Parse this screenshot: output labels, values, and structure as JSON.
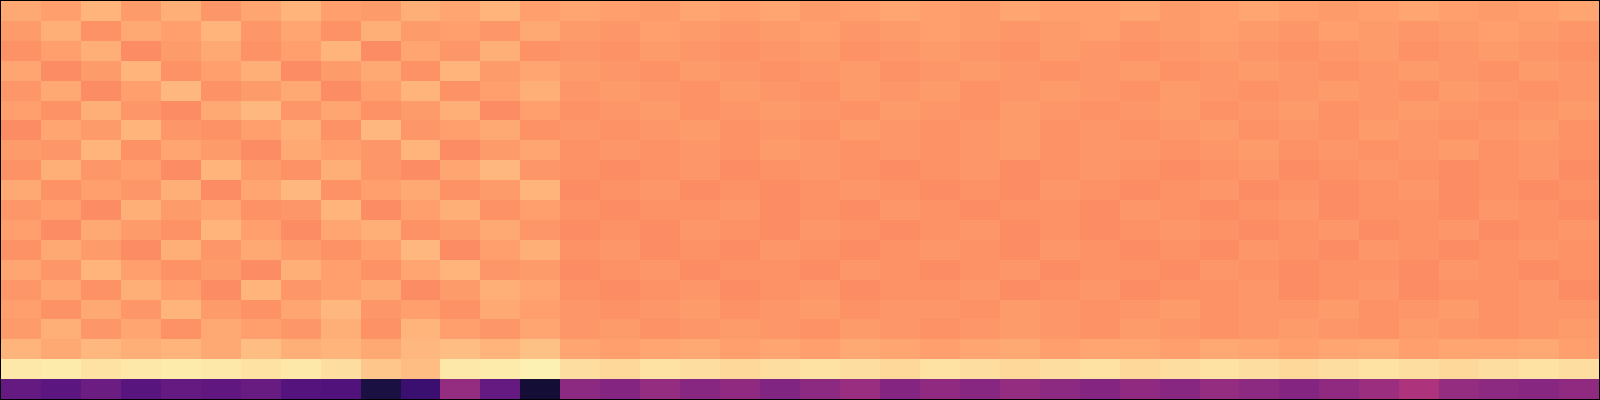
{
  "chart_data": {
    "type": "heatmap",
    "color": "magma",
    "color_range": [
      0,
      1
    ],
    "tick_labels": false,
    "values": [
      [
        0.82,
        0.8,
        0.84,
        0.79,
        0.83,
        0.78,
        0.81,
        0.84,
        0.8,
        0.79,
        0.83,
        0.81,
        0.84,
        0.8,
        0.81,
        0.8,
        0.79,
        0.81,
        0.8,
        0.81,
        0.79,
        0.8,
        0.81,
        0.8,
        0.79,
        0.81,
        0.8,
        0.8,
        0.81,
        0.79,
        0.8,
        0.81,
        0.8,
        0.79,
        0.8,
        0.81,
        0.8,
        0.79,
        0.8,
        0.81
      ],
      [
        0.79,
        0.83,
        0.77,
        0.82,
        0.8,
        0.84,
        0.78,
        0.81,
        0.77,
        0.83,
        0.79,
        0.8,
        0.78,
        0.82,
        0.79,
        0.78,
        0.8,
        0.79,
        0.78,
        0.79,
        0.8,
        0.78,
        0.79,
        0.8,
        0.79,
        0.78,
        0.79,
        0.8,
        0.78,
        0.79,
        0.8,
        0.79,
        0.78,
        0.8,
        0.79,
        0.78,
        0.79,
        0.8,
        0.79,
        0.78
      ],
      [
        0.77,
        0.8,
        0.83,
        0.76,
        0.79,
        0.82,
        0.77,
        0.8,
        0.84,
        0.76,
        0.81,
        0.78,
        0.83,
        0.77,
        0.78,
        0.77,
        0.79,
        0.78,
        0.77,
        0.78,
        0.79,
        0.77,
        0.78,
        0.79,
        0.78,
        0.77,
        0.79,
        0.78,
        0.77,
        0.78,
        0.79,
        0.78,
        0.77,
        0.78,
        0.79,
        0.77,
        0.78,
        0.79,
        0.78,
        0.77
      ],
      [
        0.81,
        0.76,
        0.79,
        0.84,
        0.77,
        0.8,
        0.83,
        0.76,
        0.79,
        0.82,
        0.77,
        0.84,
        0.79,
        0.81,
        0.79,
        0.78,
        0.77,
        0.79,
        0.78,
        0.77,
        0.78,
        0.79,
        0.77,
        0.78,
        0.79,
        0.78,
        0.77,
        0.78,
        0.79,
        0.77,
        0.78,
        0.79,
        0.78,
        0.77,
        0.78,
        0.79,
        0.78,
        0.77,
        0.79,
        0.78
      ],
      [
        0.78,
        0.82,
        0.76,
        0.8,
        0.85,
        0.77,
        0.79,
        0.82,
        0.76,
        0.8,
        0.84,
        0.77,
        0.8,
        0.83,
        0.78,
        0.79,
        0.78,
        0.77,
        0.79,
        0.78,
        0.77,
        0.79,
        0.78,
        0.79,
        0.77,
        0.78,
        0.79,
        0.78,
        0.77,
        0.79,
        0.78,
        0.77,
        0.78,
        0.79,
        0.78,
        0.77,
        0.79,
        0.78,
        0.77,
        0.78
      ],
      [
        0.8,
        0.77,
        0.83,
        0.78,
        0.76,
        0.82,
        0.85,
        0.78,
        0.81,
        0.77,
        0.79,
        0.83,
        0.76,
        0.8,
        0.77,
        0.78,
        0.79,
        0.77,
        0.78,
        0.79,
        0.78,
        0.77,
        0.79,
        0.78,
        0.77,
        0.79,
        0.78,
        0.77,
        0.78,
        0.79,
        0.77,
        0.78,
        0.79,
        0.77,
        0.78,
        0.79,
        0.78,
        0.77,
        0.78,
        0.79
      ],
      [
        0.76,
        0.81,
        0.79,
        0.84,
        0.78,
        0.77,
        0.8,
        0.83,
        0.77,
        0.85,
        0.78,
        0.8,
        0.82,
        0.77,
        0.78,
        0.77,
        0.78,
        0.79,
        0.77,
        0.78,
        0.77,
        0.79,
        0.78,
        0.77,
        0.78,
        0.79,
        0.77,
        0.78,
        0.77,
        0.78,
        0.79,
        0.77,
        0.78,
        0.77,
        0.79,
        0.78,
        0.77,
        0.78,
        0.79,
        0.77
      ],
      [
        0.79,
        0.78,
        0.84,
        0.77,
        0.81,
        0.79,
        0.76,
        0.82,
        0.8,
        0.78,
        0.84,
        0.76,
        0.79,
        0.81,
        0.77,
        0.78,
        0.77,
        0.78,
        0.77,
        0.79,
        0.78,
        0.77,
        0.78,
        0.77,
        0.78,
        0.79,
        0.77,
        0.78,
        0.78,
        0.77,
        0.78,
        0.79,
        0.77,
        0.78,
        0.77,
        0.78,
        0.79,
        0.77,
        0.78,
        0.77
      ],
      [
        0.77,
        0.83,
        0.78,
        0.8,
        0.76,
        0.84,
        0.79,
        0.77,
        0.83,
        0.78,
        0.76,
        0.81,
        0.85,
        0.78,
        0.77,
        0.76,
        0.77,
        0.78,
        0.76,
        0.77,
        0.78,
        0.77,
        0.76,
        0.77,
        0.78,
        0.76,
        0.77,
        0.78,
        0.77,
        0.76,
        0.77,
        0.78,
        0.76,
        0.77,
        0.78,
        0.77,
        0.76,
        0.77,
        0.78,
        0.76
      ],
      [
        0.82,
        0.77,
        0.8,
        0.78,
        0.83,
        0.76,
        0.81,
        0.85,
        0.77,
        0.8,
        0.82,
        0.77,
        0.79,
        0.84,
        0.76,
        0.77,
        0.78,
        0.76,
        0.77,
        0.76,
        0.77,
        0.78,
        0.77,
        0.76,
        0.77,
        0.76,
        0.78,
        0.77,
        0.76,
        0.77,
        0.78,
        0.76,
        0.77,
        0.76,
        0.77,
        0.78,
        0.76,
        0.77,
        0.76,
        0.77
      ],
      [
        0.78,
        0.8,
        0.76,
        0.83,
        0.79,
        0.81,
        0.77,
        0.78,
        0.84,
        0.76,
        0.8,
        0.83,
        0.77,
        0.8,
        0.77,
        0.76,
        0.77,
        0.77,
        0.78,
        0.76,
        0.77,
        0.76,
        0.78,
        0.77,
        0.76,
        0.77,
        0.77,
        0.76,
        0.78,
        0.77,
        0.76,
        0.77,
        0.78,
        0.76,
        0.77,
        0.77,
        0.76,
        0.78,
        0.77,
        0.76
      ],
      [
        0.8,
        0.76,
        0.82,
        0.79,
        0.77,
        0.84,
        0.8,
        0.76,
        0.81,
        0.83,
        0.77,
        0.79,
        0.82,
        0.78,
        0.76,
        0.77,
        0.76,
        0.78,
        0.77,
        0.76,
        0.78,
        0.77,
        0.76,
        0.77,
        0.78,
        0.76,
        0.77,
        0.76,
        0.77,
        0.78,
        0.77,
        0.76,
        0.77,
        0.78,
        0.76,
        0.77,
        0.78,
        0.76,
        0.77,
        0.78
      ],
      [
        0.77,
        0.82,
        0.79,
        0.76,
        0.83,
        0.78,
        0.82,
        0.79,
        0.77,
        0.8,
        0.85,
        0.76,
        0.8,
        0.83,
        0.77,
        0.78,
        0.76,
        0.77,
        0.76,
        0.78,
        0.77,
        0.76,
        0.77,
        0.78,
        0.77,
        0.76,
        0.78,
        0.77,
        0.76,
        0.77,
        0.76,
        0.78,
        0.77,
        0.76,
        0.78,
        0.77,
        0.76,
        0.77,
        0.78,
        0.77
      ],
      [
        0.81,
        0.78,
        0.84,
        0.8,
        0.77,
        0.79,
        0.76,
        0.83,
        0.8,
        0.77,
        0.81,
        0.84,
        0.78,
        0.79,
        0.76,
        0.77,
        0.78,
        0.76,
        0.77,
        0.77,
        0.76,
        0.78,
        0.77,
        0.76,
        0.77,
        0.78,
        0.76,
        0.77,
        0.77,
        0.76,
        0.78,
        0.77,
        0.76,
        0.77,
        0.77,
        0.76,
        0.78,
        0.77,
        0.76,
        0.77
      ],
      [
        0.78,
        0.81,
        0.77,
        0.83,
        0.8,
        0.76,
        0.84,
        0.78,
        0.8,
        0.82,
        0.76,
        0.79,
        0.83,
        0.81,
        0.77,
        0.76,
        0.77,
        0.78,
        0.76,
        0.77,
        0.78,
        0.76,
        0.77,
        0.77,
        0.78,
        0.76,
        0.77,
        0.78,
        0.76,
        0.77,
        0.77,
        0.78,
        0.76,
        0.77,
        0.78,
        0.76,
        0.77,
        0.77,
        0.78,
        0.76
      ],
      [
        0.8,
        0.77,
        0.82,
        0.78,
        0.84,
        0.79,
        0.77,
        0.81,
        0.85,
        0.78,
        0.8,
        0.77,
        0.82,
        0.8,
        0.78,
        0.77,
        0.78,
        0.79,
        0.77,
        0.78,
        0.79,
        0.77,
        0.78,
        0.78,
        0.77,
        0.79,
        0.78,
        0.77,
        0.78,
        0.79,
        0.77,
        0.78,
        0.78,
        0.79,
        0.77,
        0.78,
        0.79,
        0.77,
        0.78,
        0.78
      ],
      [
        0.79,
        0.83,
        0.78,
        0.81,
        0.77,
        0.82,
        0.8,
        0.78,
        0.83,
        0.77,
        0.84,
        0.8,
        0.78,
        0.81,
        0.78,
        0.79,
        0.77,
        0.78,
        0.79,
        0.78,
        0.77,
        0.79,
        0.78,
        0.77,
        0.78,
        0.79,
        0.78,
        0.77,
        0.79,
        0.78,
        0.77,
        0.78,
        0.79,
        0.78,
        0.77,
        0.79,
        0.78,
        0.77,
        0.78,
        0.79
      ],
      [
        0.84,
        0.82,
        0.85,
        0.83,
        0.84,
        0.82,
        0.86,
        0.83,
        0.84,
        0.82,
        0.85,
        0.86,
        0.84,
        0.87,
        0.81,
        0.8,
        0.81,
        0.82,
        0.8,
        0.81,
        0.8,
        0.82,
        0.81,
        0.8,
        0.81,
        0.82,
        0.8,
        0.81,
        0.81,
        0.8,
        0.82,
        0.81,
        0.8,
        0.81,
        0.82,
        0.8,
        0.81,
        0.81,
        0.82,
        0.8
      ],
      [
        0.95,
        0.96,
        0.94,
        0.95,
        0.96,
        0.95,
        0.94,
        0.95,
        0.93,
        0.88,
        0.86,
        0.95,
        0.96,
        0.97,
        0.93,
        0.92,
        0.94,
        0.93,
        0.92,
        0.93,
        0.94,
        0.93,
        0.92,
        0.94,
        0.93,
        0.92,
        0.93,
        0.94,
        0.92,
        0.93,
        0.94,
        0.93,
        0.92,
        0.93,
        0.94,
        0.93,
        0.92,
        0.93,
        0.94,
        0.93
      ],
      [
        0.3,
        0.28,
        0.32,
        0.27,
        0.3,
        0.29,
        0.31,
        0.26,
        0.25,
        0.12,
        0.2,
        0.42,
        0.3,
        0.1,
        0.4,
        0.38,
        0.42,
        0.39,
        0.41,
        0.37,
        0.4,
        0.43,
        0.38,
        0.41,
        0.39,
        0.42,
        0.4,
        0.38,
        0.41,
        0.39,
        0.42,
        0.4,
        0.38,
        0.41,
        0.44,
        0.48,
        0.42,
        0.4,
        0.39,
        0.41
      ]
    ]
  }
}
